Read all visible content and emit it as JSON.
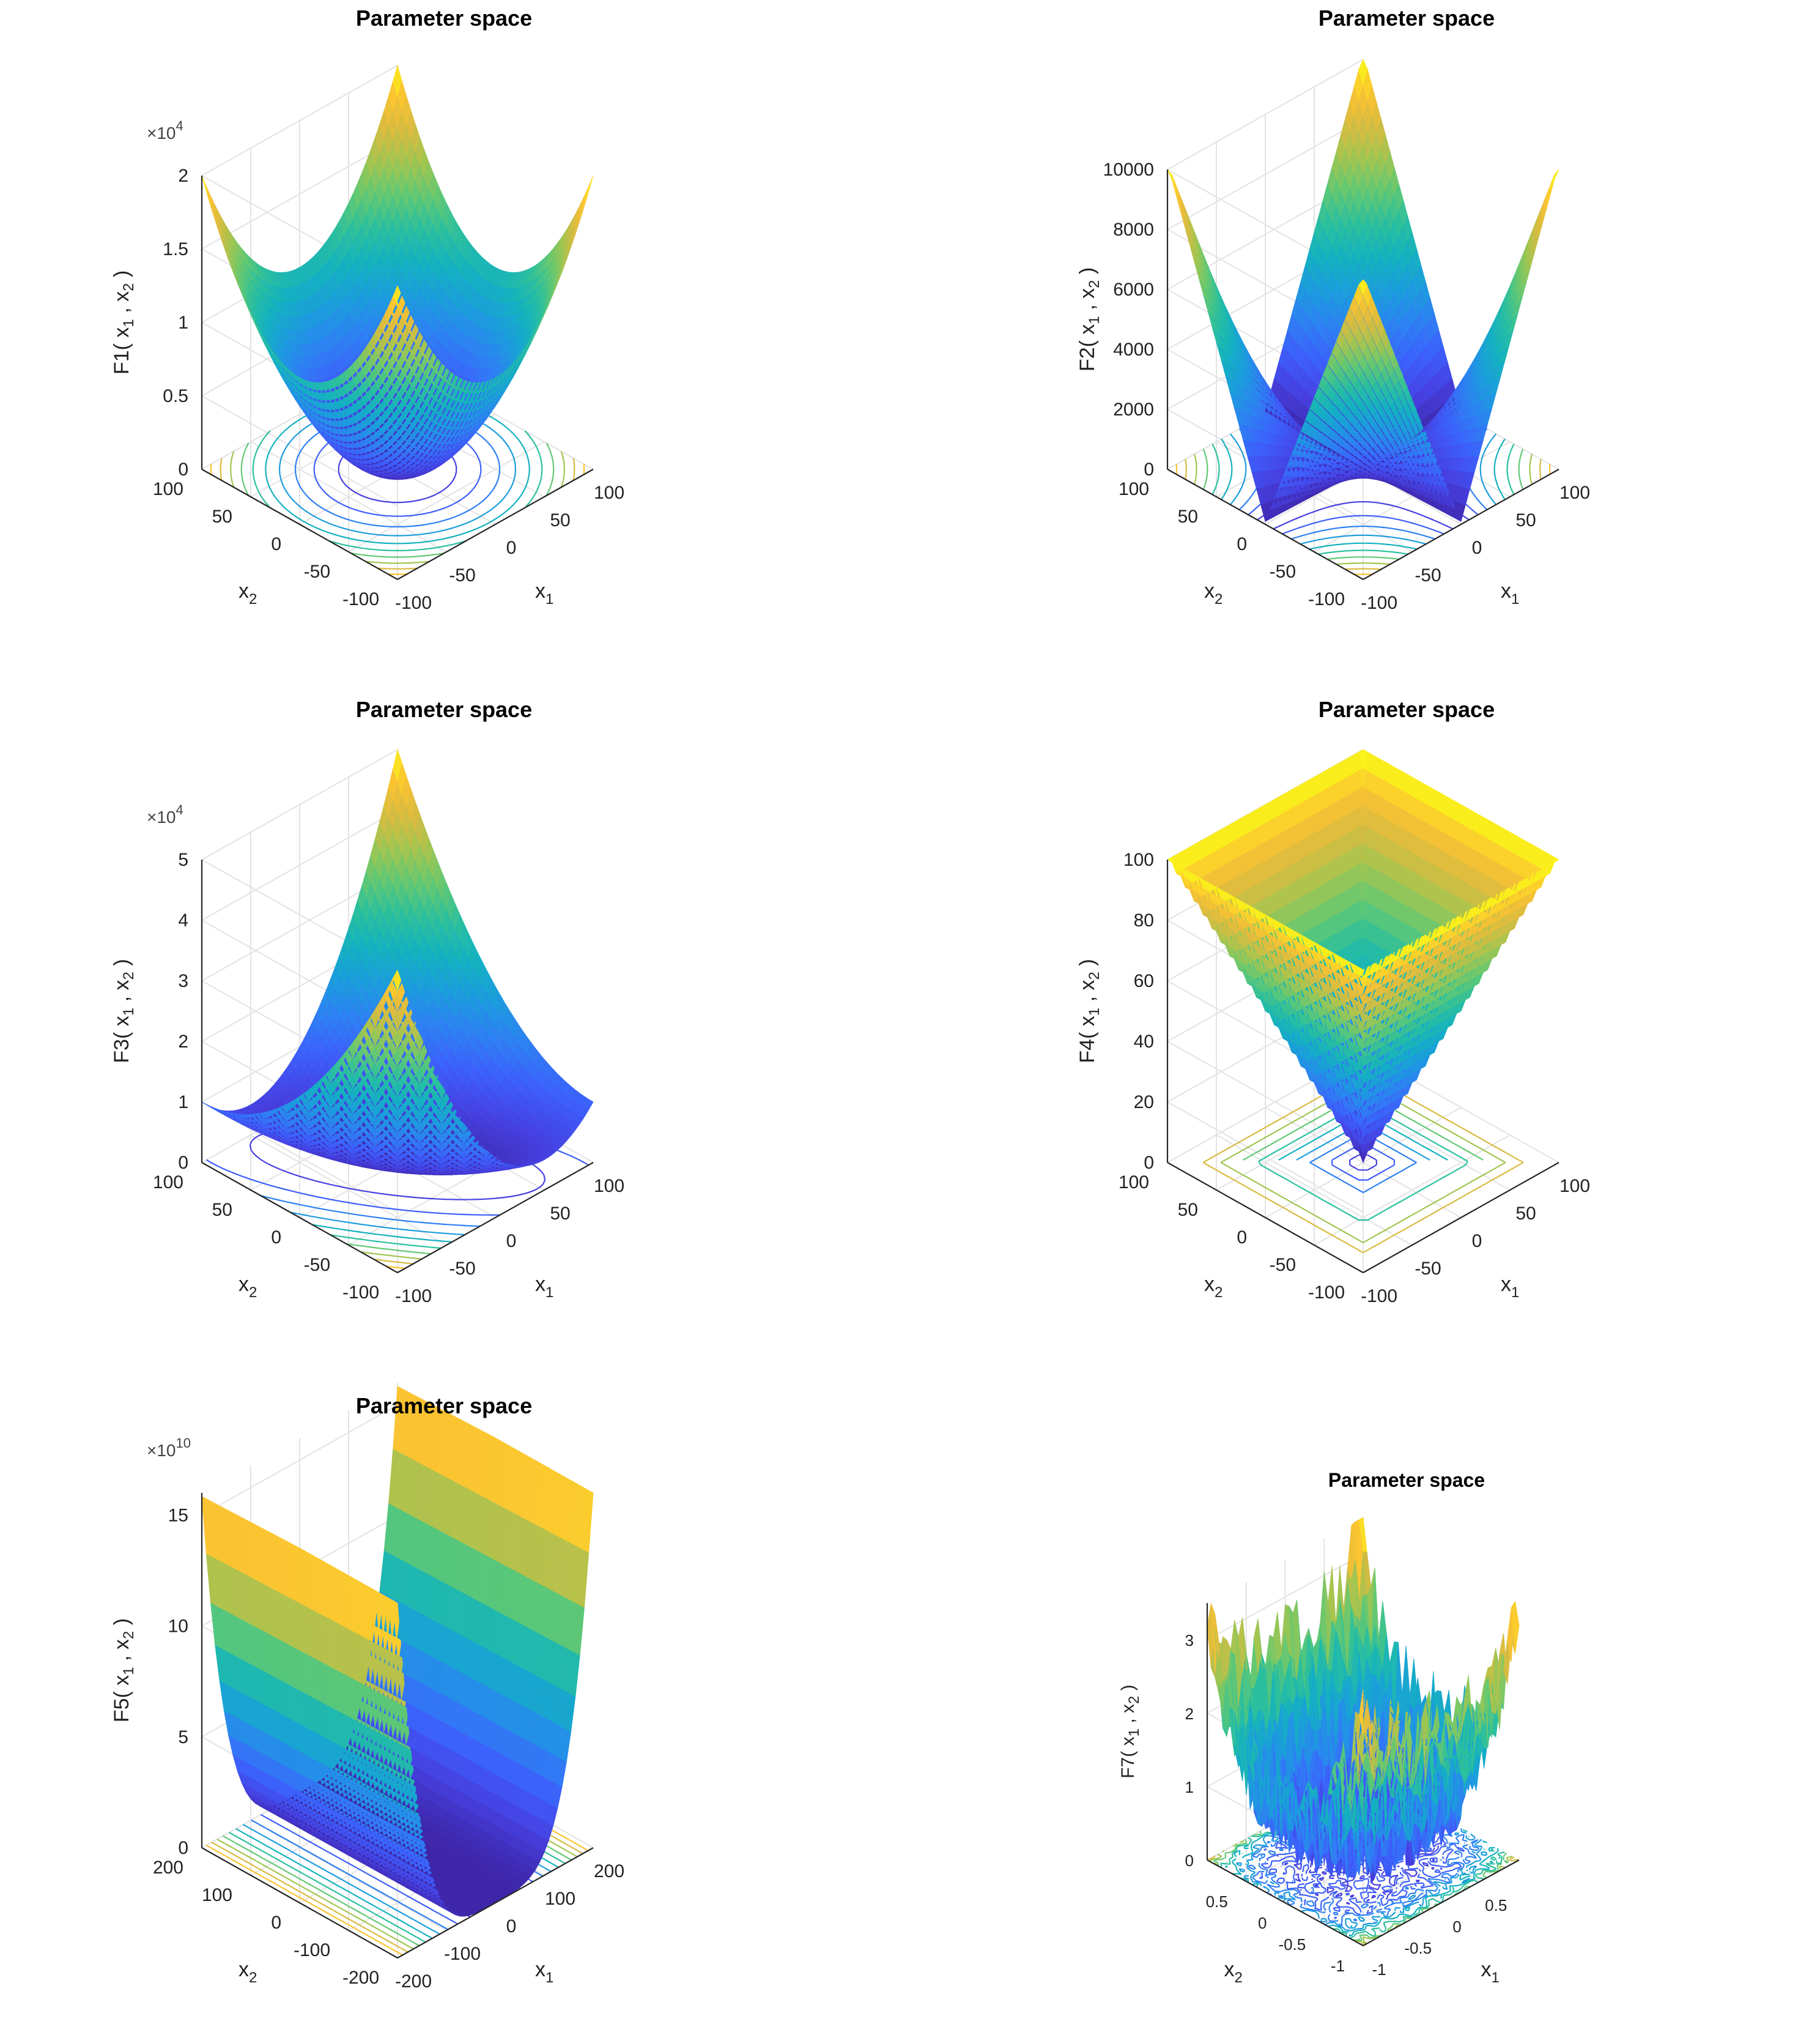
{
  "chart_data": [
    {
      "type": "surface3d",
      "title": "Parameter space",
      "zlabel": "F1( x1 , x2 )",
      "zlabel_parts": {
        "fn": "F1",
        "x": "x",
        "s1": "1",
        "s2": "2"
      },
      "xlabel": "x1",
      "ylabel": "x2",
      "xlim": [
        -100,
        100
      ],
      "ylim": [
        -100,
        100
      ],
      "zlim": [
        0,
        20000
      ],
      "xticks": [
        "-100",
        "-50",
        "0",
        "50",
        "100"
      ],
      "yticks": [
        "-100",
        "-50",
        "0",
        "50",
        "100"
      ],
      "zticks": [
        "0",
        "0.5",
        "1",
        "1.5",
        "2"
      ],
      "zexponent": {
        "base": "×10",
        "power": "4"
      },
      "function": "sphere: x1^2 + x2^2"
    },
    {
      "type": "surface3d",
      "title": "Parameter space",
      "zlabel": "F2( x1 , x2 )",
      "zlabel_parts": {
        "fn": "F2",
        "x": "x",
        "s1": "1",
        "s2": "2"
      },
      "xlabel": "x1",
      "ylabel": "x2",
      "xlim": [
        -100,
        100
      ],
      "ylim": [
        -100,
        100
      ],
      "zlim": [
        0,
        10000
      ],
      "xticks": [
        "-100",
        "-50",
        "0",
        "50",
        "100"
      ],
      "yticks": [
        "-100",
        "-50",
        "0",
        "50",
        "100"
      ],
      "zticks": [
        "0",
        "2000",
        "4000",
        "6000",
        "8000",
        "10000"
      ],
      "function": "|x1| + |x2| + |x1|*|x2|"
    },
    {
      "type": "surface3d",
      "title": "Parameter space",
      "zlabel": "F3( x1 , x2 )",
      "zlabel_parts": {
        "fn": "F3",
        "x": "x",
        "s1": "1",
        "s2": "2"
      },
      "xlabel": "x1",
      "ylabel": "x2",
      "xlim": [
        -100,
        100
      ],
      "ylim": [
        -100,
        100
      ],
      "zlim": [
        0,
        50000
      ],
      "xticks": [
        "-100",
        "-50",
        "0",
        "50",
        "100"
      ],
      "yticks": [
        "-100",
        "-50",
        "0",
        "50",
        "100"
      ],
      "zticks": [
        "0",
        "1",
        "2",
        "3",
        "4",
        "5"
      ],
      "zexponent": {
        "base": "×10",
        "power": "4"
      },
      "function": "x1^2 + (x1 + x2)^2"
    },
    {
      "type": "surface3d",
      "title": "Parameter space",
      "zlabel": "F4( x1 , x2 )",
      "zlabel_parts": {
        "fn": "F4",
        "x": "x",
        "s1": "1",
        "s2": "2"
      },
      "xlabel": "x1",
      "ylabel": "x2",
      "xlim": [
        -100,
        100
      ],
      "ylim": [
        -100,
        100
      ],
      "zlim": [
        0,
        100
      ],
      "xticks": [
        "-100",
        "-50",
        "0",
        "50",
        "100"
      ],
      "yticks": [
        "-100",
        "-50",
        "0",
        "50",
        "100"
      ],
      "zticks": [
        "0",
        "20",
        "40",
        "60",
        "80",
        "100"
      ],
      "function": "max(|x1|, |x2|)"
    },
    {
      "type": "surface3d",
      "title": "Parameter space",
      "zlabel": "F5( x1 , x2 )",
      "zlabel_parts": {
        "fn": "F5",
        "x": "x",
        "s1": "1",
        "s2": "2"
      },
      "xlabel": "x1",
      "ylabel": "x2",
      "xlim": [
        -200,
        200
      ],
      "ylim": [
        -200,
        200
      ],
      "zlim": [
        0,
        160000000000
      ],
      "xticks": [
        "-200",
        "-100",
        "0",
        "100",
        "200"
      ],
      "yticks": [
        "-200",
        "-100",
        "0",
        "100",
        "200"
      ],
      "zticks": [
        "0",
        "5",
        "10",
        "15"
      ],
      "zexponent": {
        "base": "×10",
        "power": "10"
      },
      "function": "Rosenbrock: 100*(x2 - x1^2)^2 + (x1 - 1)^2"
    },
    {
      "type": "surface3d",
      "title": "Parameter space",
      "zlabel": "F7( x1 , x2 )",
      "zlabel_parts": {
        "fn": "F7",
        "x": "x",
        "s1": "1",
        "s2": "2"
      },
      "xlabel": "x1",
      "ylabel": "x2",
      "xlim": [
        -1,
        1
      ],
      "ylim": [
        -1,
        1
      ],
      "zlim": [
        0,
        3.5
      ],
      "xticks": [
        "-1",
        "-0.5",
        "0",
        "0.5"
      ],
      "yticks": [
        "-1",
        "-0.5",
        "0",
        "0.5"
      ],
      "zticks": [
        "0",
        "1",
        "2",
        "3"
      ],
      "function": "x1^4 + 2*x2^4 + random[0,1)"
    }
  ],
  "colormap": [
    "#3e26a8",
    "#4640e0",
    "#3d5ffb",
    "#2e80f3",
    "#1c9cdd",
    "#14b1c0",
    "#2bbf9e",
    "#62c873",
    "#a2c551",
    "#d8bb41",
    "#fbc332",
    "#f9fb15"
  ]
}
